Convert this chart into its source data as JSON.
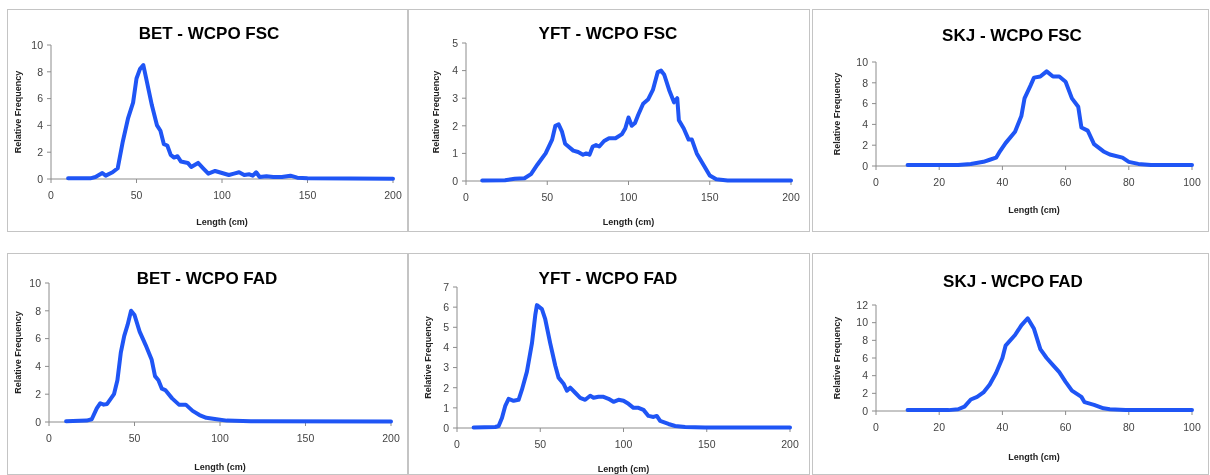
{
  "chart_data": [
    {
      "type": "line",
      "title": "BET - WCPO FSC",
      "xlabel": "Length (cm)",
      "ylabel": "Relative Frequency",
      "color": "#1f55f5",
      "xlim": [
        0,
        200
      ],
      "xticks": [
        0,
        50,
        100,
        150,
        200
      ],
      "ylim": [
        0,
        10
      ],
      "yticks": [
        0,
        2,
        4,
        6,
        8,
        10
      ],
      "x": [
        10,
        23,
        26,
        30,
        32,
        36,
        39,
        42,
        45,
        48,
        50,
        52,
        54,
        56,
        59,
        62,
        64,
        66,
        68,
        70,
        72,
        74,
        76,
        80,
        82,
        86,
        89,
        92,
        96,
        100,
        104,
        107,
        110,
        113,
        116,
        118,
        120,
        122,
        126,
        130,
        135,
        140,
        144,
        150,
        200
      ],
      "values": [
        0.05,
        0.05,
        0.15,
        0.45,
        0.25,
        0.5,
        0.8,
        2.8,
        4.5,
        5.7,
        7.5,
        8.2,
        8.5,
        7.3,
        5.5,
        4.0,
        3.6,
        2.6,
        2.5,
        1.8,
        1.6,
        1.7,
        1.3,
        1.2,
        0.9,
        1.2,
        0.8,
        0.4,
        0.6,
        0.45,
        0.3,
        0.4,
        0.5,
        0.3,
        0.35,
        0.25,
        0.5,
        0.15,
        0.2,
        0.15,
        0.15,
        0.25,
        0.1,
        0.05,
        0.02
      ]
    },
    {
      "type": "line",
      "title": "YFT - WCPO FSC",
      "xlabel": "Length (cm)",
      "ylabel": "Relative Frequency",
      "color": "#1f55f5",
      "xlim": [
        0,
        200
      ],
      "xticks": [
        0,
        50,
        100,
        150,
        200
      ],
      "ylim": [
        0,
        5
      ],
      "yticks": [
        0,
        1,
        2,
        3,
        4,
        5
      ],
      "x": [
        10,
        24,
        30,
        36,
        40,
        44,
        49,
        53,
        55,
        57,
        59,
        61,
        63,
        66,
        69,
        72,
        74,
        76,
        78,
        80,
        82,
        85,
        88,
        92,
        96,
        98,
        100,
        102,
        104,
        106,
        109,
        112,
        115,
        118,
        120,
        122,
        125,
        128,
        130,
        131,
        134,
        137,
        139,
        142,
        146,
        150,
        154,
        161,
        200
      ],
      "values": [
        0.02,
        0.03,
        0.08,
        0.1,
        0.25,
        0.6,
        1.0,
        1.5,
        2.0,
        2.05,
        1.8,
        1.35,
        1.25,
        1.1,
        1.05,
        0.95,
        1.0,
        0.95,
        1.25,
        1.3,
        1.25,
        1.45,
        1.55,
        1.55,
        1.7,
        1.9,
        2.3,
        2.0,
        2.1,
        2.4,
        2.8,
        2.95,
        3.3,
        3.95,
        4.0,
        3.85,
        3.3,
        2.85,
        3.0,
        2.2,
        1.9,
        1.5,
        1.5,
        1.0,
        0.6,
        0.2,
        0.06,
        0.02,
        0.02
      ]
    },
    {
      "type": "line",
      "title": "SKJ - WCPO FSC",
      "xlabel": "Length (cm)",
      "ylabel": "Relative Frequency",
      "color": "#1f55f5",
      "xlim": [
        0,
        100
      ],
      "xticks": [
        0,
        20,
        40,
        60,
        80,
        100
      ],
      "ylim": [
        0,
        10
      ],
      "yticks": [
        0,
        2,
        4,
        6,
        8,
        10
      ],
      "x": [
        10,
        26,
        30,
        34,
        36,
        38,
        39,
        41,
        44,
        46,
        47,
        49,
        50,
        52,
        54,
        56,
        58,
        60,
        62,
        64,
        65,
        67,
        69,
        72,
        74,
        78,
        80,
        83,
        87,
        100
      ],
      "values": [
        0.1,
        0.1,
        0.2,
        0.4,
        0.6,
        0.8,
        1.3,
        2.2,
        3.3,
        4.8,
        6.5,
        7.8,
        8.5,
        8.6,
        9.1,
        8.6,
        8.6,
        8.1,
        6.5,
        5.7,
        3.7,
        3.4,
        2.1,
        1.4,
        1.1,
        0.8,
        0.4,
        0.2,
        0.1,
        0.1
      ]
    },
    {
      "type": "line",
      "title": "BET - WCPO FAD",
      "xlabel": "Length (cm)",
      "ylabel": "Relative Frequency",
      "color": "#1f55f5",
      "xlim": [
        0,
        200
      ],
      "xticks": [
        0,
        50,
        100,
        150,
        200
      ],
      "ylim": [
        0,
        10
      ],
      "yticks": [
        0,
        2,
        4,
        6,
        8,
        10
      ],
      "x": [
        10,
        22,
        25,
        28,
        30,
        32,
        34,
        38,
        40,
        42,
        44,
        46,
        48,
        50,
        53,
        57,
        60,
        62,
        64,
        66,
        68,
        72,
        76,
        80,
        84,
        88,
        92,
        98,
        104,
        118,
        200
      ],
      "values": [
        0.05,
        0.1,
        0.2,
        1.0,
        1.35,
        1.25,
        1.3,
        2.0,
        3.0,
        5.0,
        6.2,
        7.0,
        8.0,
        7.7,
        6.5,
        5.4,
        4.5,
        3.3,
        3.0,
        2.4,
        2.3,
        1.7,
        1.25,
        1.25,
        0.8,
        0.5,
        0.3,
        0.2,
        0.1,
        0.05,
        0.03
      ]
    },
    {
      "type": "line",
      "title": "YFT - WCPO FAD",
      "xlabel": "Length (cm)",
      "ylabel": "Relative Frequency",
      "color": "#1f55f5",
      "xlim": [
        0,
        200
      ],
      "xticks": [
        0,
        50,
        100,
        150,
        200
      ],
      "ylim": [
        0,
        7
      ],
      "yticks": [
        0,
        1,
        2,
        3,
        4,
        5,
        6,
        7
      ],
      "x": [
        10,
        23,
        25,
        27,
        29,
        31,
        34,
        37,
        39,
        42,
        45,
        47,
        48,
        51,
        53,
        56,
        59,
        61,
        64,
        66,
        68,
        71,
        74,
        77,
        80,
        82,
        85,
        88,
        91,
        94,
        97,
        100,
        103,
        106,
        109,
        112,
        115,
        118,
        120,
        122,
        127,
        131,
        137,
        149,
        200
      ],
      "values": [
        0.03,
        0.05,
        0.1,
        0.5,
        1.1,
        1.45,
        1.35,
        1.4,
        1.9,
        2.8,
        4.2,
        5.6,
        6.1,
        5.9,
        5.4,
        4.2,
        3.1,
        2.5,
        2.2,
        1.85,
        2.0,
        1.75,
        1.5,
        1.4,
        1.6,
        1.5,
        1.55,
        1.55,
        1.45,
        1.3,
        1.4,
        1.35,
        1.2,
        1.0,
        1.0,
        0.9,
        0.6,
        0.55,
        0.6,
        0.35,
        0.2,
        0.1,
        0.05,
        0.02,
        0.02
      ]
    },
    {
      "type": "line",
      "title": "SKJ - WCPO FAD",
      "xlabel": "Length (cm)",
      "ylabel": "Relative Frequency",
      "color": "#1f55f5",
      "xlim": [
        0,
        100
      ],
      "xticks": [
        0,
        20,
        40,
        60,
        80,
        100
      ],
      "ylim": [
        0,
        12
      ],
      "yticks": [
        0,
        2,
        4,
        6,
        8,
        10,
        12
      ],
      "x": [
        10,
        23,
        26,
        28,
        30,
        32,
        34,
        36,
        38,
        40,
        41,
        44,
        46,
        48,
        50,
        52,
        54,
        56,
        58,
        60,
        62,
        65,
        66,
        69,
        72,
        74,
        79,
        100
      ],
      "values": [
        0.1,
        0.1,
        0.2,
        0.5,
        1.3,
        1.6,
        2.1,
        3.0,
        4.3,
        6.0,
        7.4,
        8.6,
        9.7,
        10.5,
        9.3,
        7.0,
        6.0,
        5.2,
        4.4,
        3.3,
        2.3,
        1.6,
        1.0,
        0.7,
        0.3,
        0.2,
        0.1,
        0.1
      ]
    }
  ]
}
